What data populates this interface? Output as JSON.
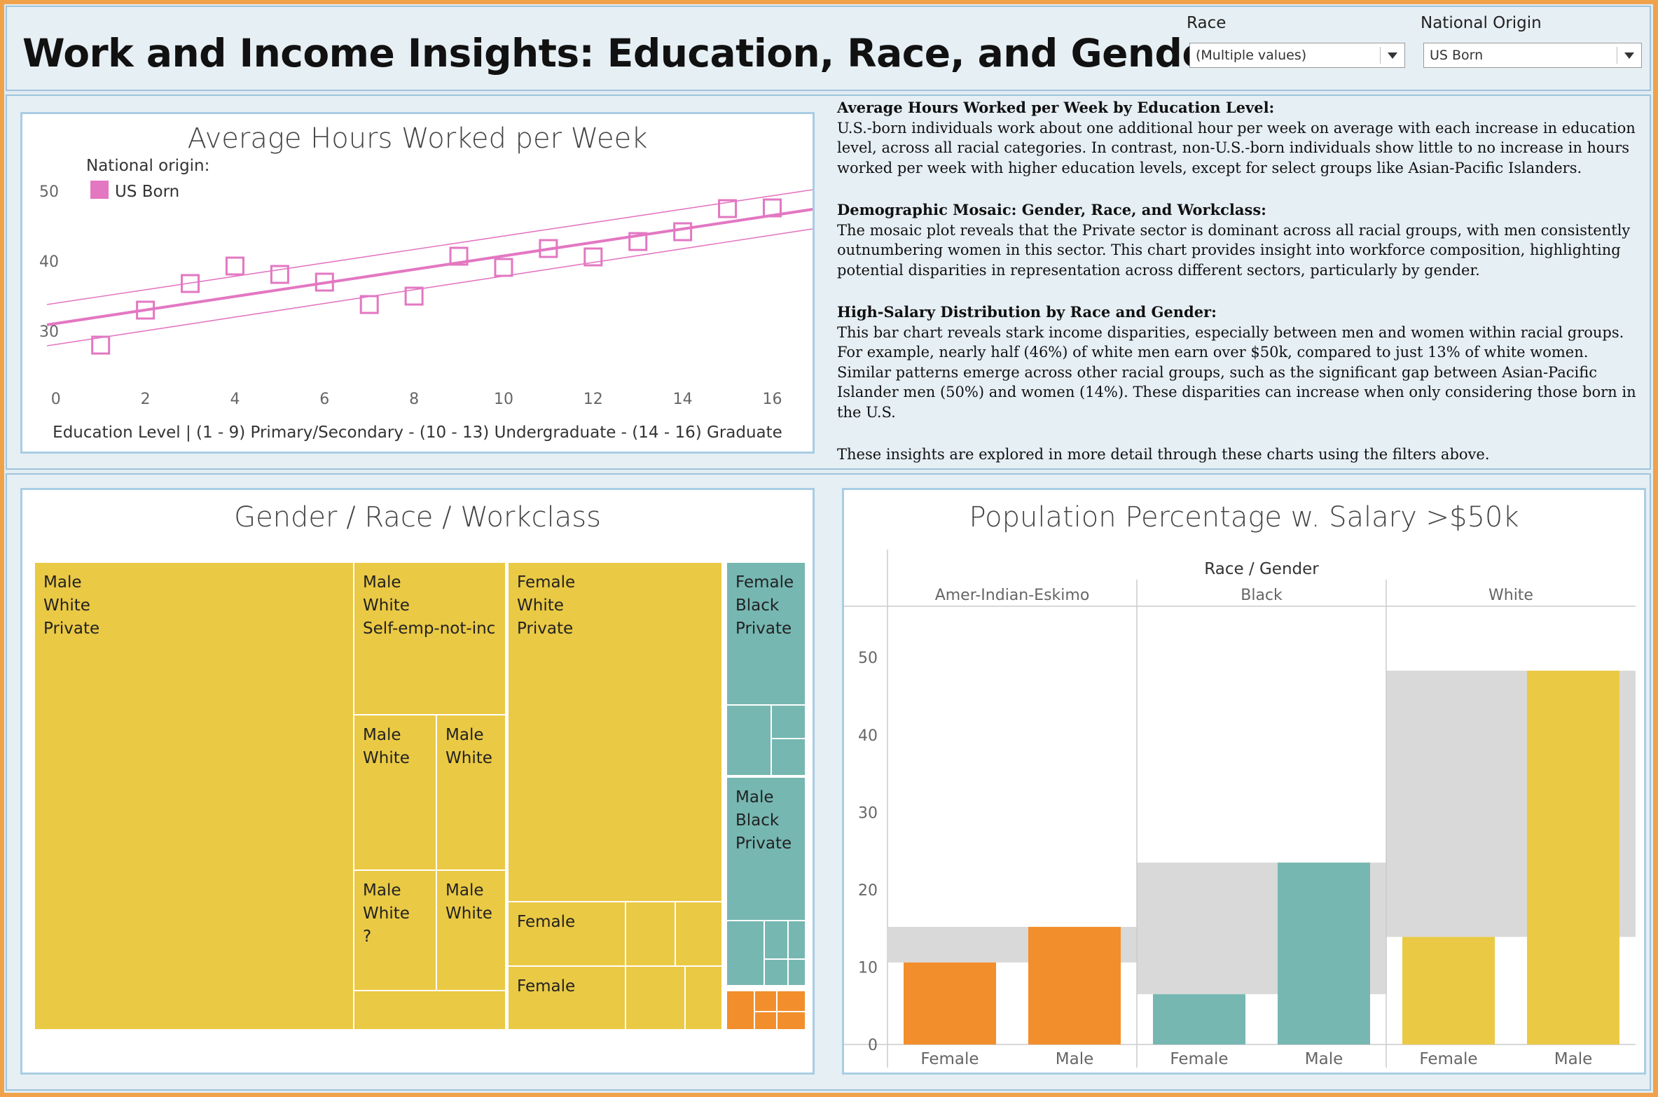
{
  "header": {
    "title": "Work and Income Insights: Education, Race, and Gender",
    "filters": {
      "race": {
        "label": "Race",
        "value": "(Multiple values)"
      },
      "national_origin": {
        "label": "National Origin",
        "value": "US Born"
      }
    }
  },
  "hours_chart": {
    "title": "Average Hours Worked per Week",
    "legend_title": "National origin:",
    "legend_item": "US Born",
    "legend_color": "#e377c2",
    "xlabel": "Education Level | (1 - 9) Primary/Secondary - (10 - 13) Undergraduate - (14 - 16) Graduate",
    "x_ticks": [
      "0",
      "2",
      "4",
      "6",
      "8",
      "10",
      "12",
      "14",
      "16"
    ],
    "y_ticks": [
      "30",
      "40",
      "50"
    ]
  },
  "insights": {
    "p1_heading": "Average Hours Worked per Week by Education Level:",
    "p1_body": "U.S.-born individuals work about one additional hour per week on average with each increase in education level, across all racial categories. In contrast, non-U.S.-born individuals show little to no increase in hours worked per week with higher education levels, except for select groups like Asian-Pacific Islanders.",
    "p2_heading": "Demographic Mosaic: Gender, Race, and Workclass:",
    "p2_body": "The mosaic plot reveals that the Private sector is dominant across all racial groups, with men consistently outnumbering women in this sector. This chart provides insight into workforce composition, highlighting potential disparities in representation across different sectors, particularly by gender.",
    "p3_heading": "High-Salary Distribution by Race and Gender:",
    "p3_body": "This bar chart reveals stark income disparities, especially between men and women within racial groups. For example, nearly half (46%) of white men earn over $50k, compared to just 13% of white women. Similar patterns emerge across other racial groups, such as the significant gap between Asian-Pacific Islander men (50%) and women (14%). These disparities can increase when only considering those born in the U.S.",
    "p4_body": "These insights are explored in more detail through these charts using the filters above."
  },
  "mosaic": {
    "title": "Gender / Race / Workclass",
    "labels": {
      "male_white_private": "Male\nWhite\nPrivate",
      "male_white_selfemp": "Male\nWhite\nSelf-emp-not-inc",
      "male_white_a": "Male\nWhite",
      "male_white_b": "Male\nWhite",
      "male_white_q": "Male\nWhite\n?",
      "male_white_c": "Male\nWhite",
      "female_white_private": "Female\nWhite\nPrivate",
      "female_a": "Female",
      "female_b": "Female",
      "female_black_private": "Female\nBlack\nPrivate",
      "male_black_private": "Male\nBlack\nPrivate"
    },
    "colors": {
      "white": "#eac944",
      "black": "#76b7b2",
      "amer": "#f28e2b"
    }
  },
  "chart_data": [
    {
      "type": "scatter",
      "title": "Average Hours Worked per Week",
      "xlabel": "Education Level | (1 - 9) Primary/Secondary - (10 - 13) Undergraduate - (14 - 16) Graduate",
      "ylabel": "",
      "xlim": [
        -0.2,
        16.9
      ],
      "ylim": [
        27,
        55
      ],
      "series": [
        {
          "name": "US Born",
          "x": [
            1,
            2,
            3,
            4,
            5,
            6,
            7,
            8,
            9,
            10,
            11,
            12,
            13,
            14,
            15,
            16
          ],
          "y": [
            28.0,
            33.0,
            36.8,
            39.3,
            38.1,
            37.0,
            33.8,
            35.0,
            40.7,
            39.1,
            41.8,
            40.6,
            42.8,
            44.2,
            47.5,
            47.6
          ]
        }
      ],
      "trend": {
        "x": [
          -0.2,
          16.9
        ],
        "y": [
          30.9,
          47.4
        ]
      },
      "band_upper": {
        "x": [
          -0.2,
          16.9
        ],
        "y": [
          33.8,
          50.2
        ]
      },
      "band_lower": {
        "x": [
          -0.2,
          16.9
        ],
        "y": [
          27.9,
          44.6
        ]
      }
    },
    {
      "type": "bar",
      "title": "Population Percentage w. Salary >$50k",
      "header": "Race / Gender",
      "categories": [
        "Female",
        "Male"
      ],
      "groups": [
        {
          "name": "Amer-Indian-Eskimo",
          "color": "#f28e2b",
          "values": [
            10.6,
            15.2
          ]
        },
        {
          "name": "Black",
          "color": "#76b7b2",
          "values": [
            6.5,
            23.5
          ]
        },
        {
          "name": "White",
          "color": "#eac944",
          "values": [
            13.9,
            48.3
          ]
        }
      ],
      "ylim": [
        0,
        54
      ],
      "y_ticks": [
        0,
        10,
        20,
        30,
        40,
        50
      ]
    }
  ]
}
